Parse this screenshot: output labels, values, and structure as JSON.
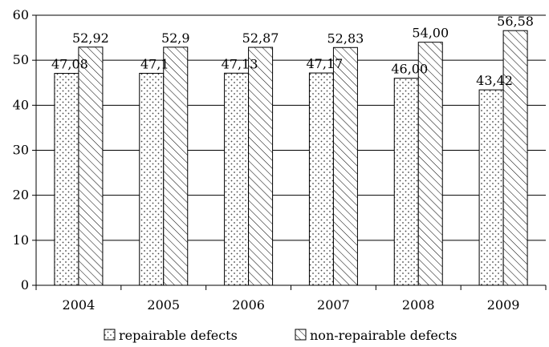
{
  "chart_data": {
    "type": "bar",
    "title": "",
    "xlabel": "",
    "ylabel": "",
    "categories": [
      "2004",
      "2005",
      "2006",
      "2007",
      "2008",
      "2009"
    ],
    "ylim": [
      0,
      60
    ],
    "yticks": [
      0,
      10,
      20,
      30,
      40,
      50,
      60
    ],
    "grid": true,
    "legend_position": "bottom",
    "series": [
      {
        "name": "repairable defects",
        "values": [
          47.08,
          47.1,
          47.13,
          47.17,
          46.0,
          43.42
        ],
        "labels": [
          "47,08",
          "47,1",
          "47,13",
          "47,17",
          "46,00",
          "43,42"
        ],
        "pattern": "dots"
      },
      {
        "name": "non-repairable defects",
        "values": [
          52.92,
          52.9,
          52.87,
          52.83,
          54.0,
          56.58
        ],
        "labels": [
          "52,92",
          "52,9",
          "52,87",
          "52,83",
          "54,00",
          "56,58"
        ],
        "pattern": "diagonal-hatch"
      }
    ]
  }
}
